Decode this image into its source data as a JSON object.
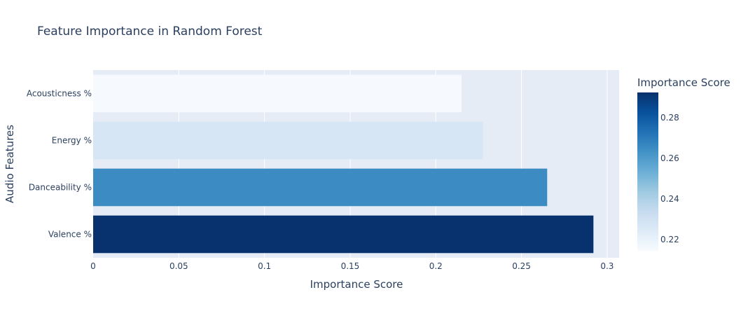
{
  "chart_data": {
    "type": "bar",
    "orientation": "horizontal",
    "title": "Feature Importance in Random Forest",
    "xlabel": "Importance Score",
    "ylabel": "Audio Features",
    "categories": [
      "Valence %",
      "Danceability %",
      "Energy %",
      "Acousticness %"
    ],
    "values": [
      0.292,
      0.265,
      0.2275,
      0.215
    ],
    "xlim": [
      0,
      0.307
    ],
    "xticks": [
      0,
      0.05,
      0.1,
      0.15,
      0.2,
      0.25,
      0.3
    ],
    "xtick_labels": [
      "0",
      "0.05",
      "0.1",
      "0.15",
      "0.2",
      "0.25",
      "0.3"
    ],
    "grid": true,
    "colorbar": {
      "title": "Importance Score",
      "range": [
        0.2145,
        0.2925
      ],
      "ticks": [
        0.22,
        0.24,
        0.26,
        0.28
      ],
      "tick_labels": [
        "0.22",
        "0.24",
        "0.26",
        "0.28"
      ],
      "colorscale": [
        "#f7fbff",
        "#deebf7",
        "#c6dbef",
        "#9ecae1",
        "#6baed6",
        "#4292c6",
        "#2171b5",
        "#08519c",
        "#08306b"
      ]
    },
    "colors": {
      "plot_background": "#e5ecf6",
      "grid": "#ffffff",
      "text": "#2a3f5f"
    }
  }
}
